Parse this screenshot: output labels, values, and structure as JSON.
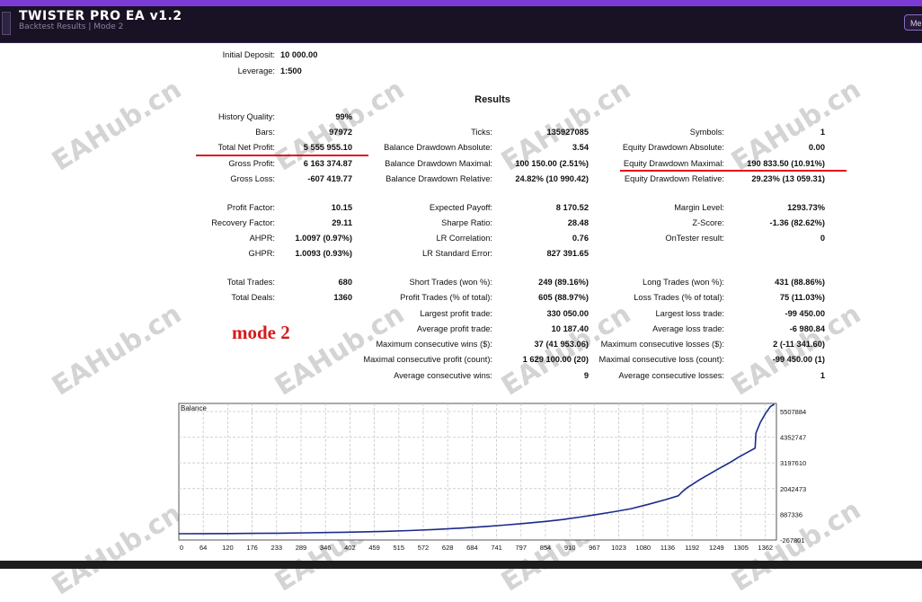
{
  "app": {
    "title": "TWISTER PRO EA  v1.2",
    "subtitle": "Backtest Results  |  Mode 2",
    "menu_label": "Me",
    "icon": "app-logo-icon"
  },
  "report": {
    "initial_deposit_label": "Initial Deposit:",
    "initial_deposit": "10 000.00",
    "leverage_label": "Leverage:",
    "leverage": "1:500",
    "results_title": "Results",
    "history_quality_label": "History Quality:",
    "history_quality": "99%",
    "bars_label": "Bars:",
    "bars": "97972",
    "ticks_label": "Ticks:",
    "ticks": "135927085",
    "symbols_label": "Symbols:",
    "symbols": "1",
    "total_net_profit_label": "Total Net Profit:",
    "total_net_profit": "5 555 955.10",
    "balance_dd_abs_label": "Balance Drawdown Absolute:",
    "balance_dd_abs": "3.54",
    "equity_dd_abs_label": "Equity Drawdown Absolute:",
    "equity_dd_abs": "0.00",
    "gross_profit_label": "Gross Profit:",
    "gross_profit": "6 163 374.87",
    "balance_dd_max_label": "Balance Drawdown Maximal:",
    "balance_dd_max": "100 150.00 (2.51%)",
    "equity_dd_max_label": "Equity Drawdown Maximal:",
    "equity_dd_max": "190 833.50 (10.91%)",
    "gross_loss_label": "Gross Loss:",
    "gross_loss": "-607 419.77",
    "balance_dd_rel_label": "Balance Drawdown Relative:",
    "balance_dd_rel": "24.82% (10 990.42)",
    "equity_dd_rel_label": "Equity Drawdown Relative:",
    "equity_dd_rel": "29.23% (13 059.31)",
    "profit_factor_label": "Profit Factor:",
    "profit_factor": "10.15",
    "expected_payoff_label": "Expected Payoff:",
    "expected_payoff": "8 170.52",
    "margin_level_label": "Margin Level:",
    "margin_level": "1293.73%",
    "recovery_factor_label": "Recovery Factor:",
    "recovery_factor": "29.11",
    "sharpe_label": "Sharpe Ratio:",
    "sharpe": "28.48",
    "zscore_label": "Z-Score:",
    "zscore": "-1.36 (82.62%)",
    "ahpr_label": "AHPR:",
    "ahpr": "1.0097 (0.97%)",
    "lr_corr_label": "LR Correlation:",
    "lr_corr": "0.76",
    "ontester_label": "OnTester result:",
    "ontester": "0",
    "ghpr_label": "GHPR:",
    "ghpr": "1.0093 (0.93%)",
    "lr_std_label": "LR Standard Error:",
    "lr_std": "827 391.65",
    "total_trades_label": "Total Trades:",
    "total_trades": "680",
    "short_trades_label": "Short Trades (won %):",
    "short_trades": "249 (89.16%)",
    "long_trades_label": "Long Trades (won %):",
    "long_trades": "431 (88.86%)",
    "total_deals_label": "Total Deals:",
    "total_deals": "1360",
    "profit_trades_label": "Profit Trades (% of total):",
    "profit_trades": "605 (88.97%)",
    "loss_trades_label": "Loss Trades (% of total):",
    "loss_trades": "75 (11.03%)",
    "largest_profit_label": "Largest profit trade:",
    "largest_profit": "330 050.00",
    "largest_loss_label": "Largest loss trade:",
    "largest_loss": "-99 450.00",
    "avg_profit_label": "Average profit trade:",
    "avg_profit": "10 187.40",
    "avg_loss_label": "Average loss trade:",
    "avg_loss": "-6 980.84",
    "max_consec_wins_label": "Maximum consecutive wins ($):",
    "max_consec_wins": "37 (41 953.06)",
    "max_consec_losses_label": "Maximum consecutive losses ($):",
    "max_consec_losses": "2 (-11 341.60)",
    "maximal_consec_profit_label": "Maximal consecutive profit (count):",
    "maximal_consec_profit": "1 629 100.00 (20)",
    "maximal_consec_loss_label": "Maximal consecutive loss (count):",
    "maximal_consec_loss": "-99 450.00 (1)",
    "avg_consec_wins_label": "Average consecutive wins:",
    "avg_consec_wins": "9",
    "avg_consec_losses_label": "Average consecutive losses:",
    "avg_consec_losses": "1"
  },
  "annotation": {
    "mode_text": "mode 2",
    "highlight_color": "#e0141c"
  },
  "watermark": {
    "text": "EAHub.cn"
  },
  "chart_data": {
    "type": "line",
    "title": "Balance",
    "x_ticks": [
      "0",
      "64",
      "120",
      "176",
      "233",
      "289",
      "346",
      "402",
      "459",
      "515",
      "572",
      "628",
      "684",
      "741",
      "797",
      "854",
      "910",
      "967",
      "1023",
      "1080",
      "1136",
      "1192",
      "1249",
      "1305",
      "1362"
    ],
    "y_ticks": [
      "5507884",
      "4352747",
      "3197610",
      "2042473",
      "887336",
      "-267801"
    ],
    "ylim": [
      -267801,
      5507884
    ],
    "xlim": [
      0,
      1400
    ],
    "grid": true,
    "line_color": "#1b2a8c",
    "series": [
      {
        "x": [
          0,
          60,
          120,
          180,
          240,
          300,
          360,
          420,
          480,
          540,
          600,
          660,
          720,
          760,
          800,
          860,
          900,
          940,
          980,
          1020,
          1060,
          1100,
          1140,
          1170,
          1180,
          1192,
          1220,
          1260,
          1290,
          1310,
          1330,
          1350,
          1352,
          1362,
          1375,
          1386,
          1395
        ],
        "y": [
          0,
          2000,
          5000,
          12000,
          22000,
          35000,
          52000,
          72000,
          98000,
          130000,
          175000,
          235000,
          305000,
          360000,
          420000,
          520000,
          600000,
          700000,
          810000,
          930000,
          1060000,
          1240000,
          1440000,
          1600000,
          1780000,
          1960000,
          2280000,
          2700000,
          3000000,
          3220000,
          3420000,
          3620000,
          4250000,
          4700000,
          5100000,
          5380000,
          5470000
        ]
      }
    ]
  }
}
